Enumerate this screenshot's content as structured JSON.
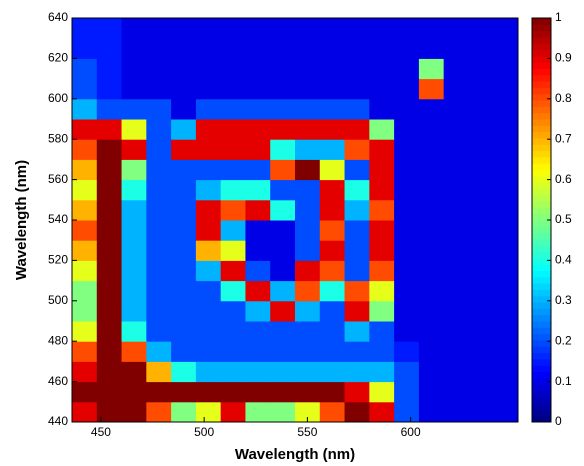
{
  "chart_data": {
    "type": "heatmap",
    "colormap": "jet",
    "x_label": "Wavelength (nm)",
    "y_label": "Wavelength (nm)",
    "x": [
      442,
      454,
      466,
      478,
      490,
      502,
      514,
      526,
      538,
      550,
      562,
      574,
      586,
      598,
      610,
      622,
      634,
      646
    ],
    "y": [
      445,
      455,
      465,
      475,
      485,
      495,
      505,
      515,
      525,
      535,
      545,
      555,
      565,
      575,
      585,
      595,
      605,
      615,
      625,
      635
    ],
    "z": [
      [
        0.9,
        1,
        1,
        0.8,
        0.5,
        0.6,
        0.9,
        0.5,
        0.5,
        0.6,
        0.8,
        1,
        0.9,
        0.2,
        0.1,
        0.1,
        0.1,
        0.1
      ],
      [
        1,
        1,
        1,
        1,
        1,
        1,
        1,
        1,
        1,
        1,
        1,
        0.9,
        0.6,
        0.2,
        0.1,
        0.1,
        0.1,
        0.1
      ],
      [
        0.9,
        1,
        1,
        0.7,
        0.4,
        0.3,
        0.3,
        0.3,
        0.3,
        0.3,
        0.3,
        0.3,
        0.3,
        0.2,
        0.1,
        0.1,
        0.1,
        0.1
      ],
      [
        0.8,
        1,
        0.8,
        0.3,
        0.2,
        0.2,
        0.2,
        0.2,
        0.2,
        0.2,
        0.2,
        0.2,
        0.2,
        0.15,
        0.1,
        0.1,
        0.1,
        0.1
      ],
      [
        0.6,
        1,
        0.4,
        0.2,
        0.2,
        0.2,
        0.2,
        0.2,
        0.2,
        0.2,
        0.2,
        0.3,
        0.2,
        0.1,
        0.1,
        0.1,
        0.1,
        0.1
      ],
      [
        0.5,
        1,
        0.3,
        0.2,
        0.2,
        0.2,
        0.2,
        0.3,
        0.9,
        0.3,
        0.2,
        0.9,
        0.5,
        0.1,
        0.1,
        0.1,
        0.1,
        0.1
      ],
      [
        0.5,
        1,
        0.3,
        0.2,
        0.2,
        0.2,
        0.4,
        0.9,
        0.3,
        0.8,
        0.4,
        0.8,
        0.6,
        0.1,
        0.1,
        0.1,
        0.1,
        0.1
      ],
      [
        0.6,
        1,
        0.3,
        0.2,
        0.2,
        0.3,
        0.9,
        0.2,
        0.1,
        0.9,
        0.8,
        0.2,
        0.8,
        0.1,
        0.1,
        0.1,
        0.1,
        0.1
      ],
      [
        0.7,
        1,
        0.3,
        0.2,
        0.2,
        0.7,
        0.6,
        0.1,
        0.1,
        0.2,
        0.9,
        0.2,
        0.9,
        0.1,
        0.1,
        0.1,
        0.1,
        0.1
      ],
      [
        0.8,
        1,
        0.3,
        0.2,
        0.2,
        0.9,
        0.3,
        0.1,
        0.1,
        0.2,
        0.8,
        0.2,
        0.9,
        0.1,
        0.1,
        0.1,
        0.1,
        0.1
      ],
      [
        0.7,
        1,
        0.3,
        0.2,
        0.2,
        0.9,
        0.8,
        0.9,
        0.4,
        0.2,
        0.9,
        0.3,
        0.8,
        0.1,
        0.1,
        0.1,
        0.1,
        0.1
      ],
      [
        0.6,
        1,
        0.4,
        0.2,
        0.2,
        0.3,
        0.4,
        0.4,
        0.2,
        0.2,
        0.9,
        0.4,
        0.9,
        0.1,
        0.1,
        0.1,
        0.1,
        0.1
      ],
      [
        0.7,
        1,
        0.5,
        0.2,
        0.2,
        0.2,
        0.2,
        0.2,
        0.8,
        1,
        0.6,
        0.2,
        0.9,
        0.1,
        0.1,
        0.1,
        0.1,
        0.1
      ],
      [
        0.8,
        1,
        0.9,
        0.2,
        0.9,
        0.9,
        0.9,
        0.9,
        0.4,
        0.3,
        0.3,
        0.8,
        0.9,
        0.1,
        0.1,
        0.1,
        0.1,
        0.1
      ],
      [
        0.9,
        0.9,
        0.6,
        0.2,
        0.3,
        0.9,
        0.9,
        0.9,
        0.9,
        0.9,
        0.9,
        0.9,
        0.5,
        0.1,
        0.1,
        0.1,
        0.1,
        0.1
      ],
      [
        0.3,
        0.2,
        0.2,
        0.2,
        0.1,
        0.2,
        0.2,
        0.2,
        0.2,
        0.2,
        0.2,
        0.2,
        0.1,
        0.1,
        0.1,
        0.1,
        0.1,
        0.1
      ],
      [
        0.2,
        0.15,
        0.1,
        0.1,
        0.1,
        0.1,
        0.1,
        0.1,
        0.1,
        0.1,
        0.1,
        0.1,
        0.1,
        0.1,
        0.8,
        0.1,
        0.1,
        0.1
      ],
      [
        0.2,
        0.15,
        0.1,
        0.1,
        0.1,
        0.1,
        0.1,
        0.1,
        0.1,
        0.1,
        0.1,
        0.1,
        0.1,
        0.1,
        0.5,
        0.1,
        0.1,
        0.1
      ],
      [
        0.15,
        0.15,
        0.1,
        0.1,
        0.1,
        0.1,
        0.1,
        0.1,
        0.1,
        0.1,
        0.1,
        0.1,
        0.1,
        0.1,
        0.1,
        0.1,
        0.1,
        0.1
      ],
      [
        0.15,
        0.15,
        0.1,
        0.1,
        0.1,
        0.1,
        0.1,
        0.1,
        0.1,
        0.1,
        0.1,
        0.1,
        0.1,
        0.1,
        0.1,
        0.1,
        0.1,
        0.1
      ]
    ],
    "xlim": [
      436,
      652
    ],
    "ylim": [
      440,
      640
    ],
    "xticks": [
      450,
      500,
      550,
      600
    ],
    "yticks": [
      440,
      460,
      480,
      500,
      520,
      540,
      560,
      580,
      600,
      620,
      640
    ],
    "zlim": [
      0,
      1
    ],
    "zticks": [
      0,
      0.1,
      0.2,
      0.3,
      0.4,
      0.5,
      0.6,
      0.7,
      0.8,
      0.9,
      1
    ]
  }
}
